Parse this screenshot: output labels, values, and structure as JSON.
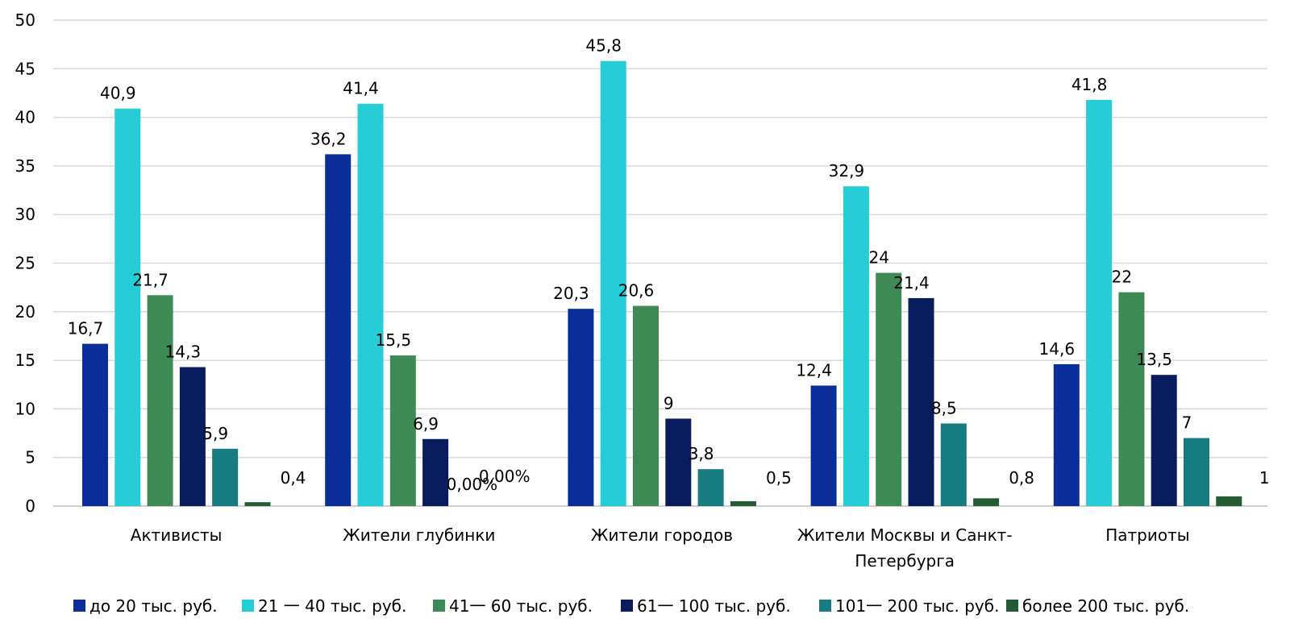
{
  "chart_data": {
    "type": "bar",
    "title": "",
    "xlabel": "",
    "ylabel": "",
    "ylim": [
      0,
      50
    ],
    "yticks": [
      "0",
      "5",
      "10",
      "15",
      "20",
      "25",
      "30",
      "35",
      "40",
      "45",
      "50"
    ],
    "grid": true,
    "legend_position": "bottom",
    "categories": [
      [
        "Активисты"
      ],
      [
        "Жители глубинки"
      ],
      [
        "Жители городов"
      ],
      [
        "Жители Москвы и Санкт-",
        "Петербурга"
      ],
      [
        "Патриоты"
      ]
    ],
    "series": [
      {
        "name": "до 20 тыс. руб.",
        "color": "#0a2d9a",
        "values": [
          16.7,
          36.2,
          20.3,
          12.4,
          14.6
        ],
        "labels": [
          "16,7",
          "36,2",
          "20,3",
          "12,4",
          "14,6"
        ]
      },
      {
        "name": "21 一 40 тыс. руб.",
        "color": "#27cdd6",
        "values": [
          40.9,
          41.4,
          45.8,
          32.9,
          41.8
        ],
        "labels": [
          "40,9",
          "41,4",
          "45,8",
          "32,9",
          "41,8"
        ]
      },
      {
        "name": "41一 60 тыс. руб.",
        "color": "#3e8a55",
        "values": [
          21.7,
          15.5,
          20.6,
          24,
          22
        ],
        "labels": [
          "21,7",
          "15,5",
          "20,6",
          "24",
          "22"
        ]
      },
      {
        "name": "61一 100 тыс. руб.",
        "color": "#081c5e",
        "values": [
          14.3,
          6.9,
          9,
          21.4,
          13.5
        ],
        "labels": [
          "14,3",
          "6,9",
          "9",
          "21,4",
          "13,5"
        ]
      },
      {
        "name": "101一 200 тыс. руб.",
        "color": "#177c80",
        "values": [
          5.9,
          0,
          3.8,
          8.5,
          7
        ],
        "labels": [
          "5,9",
          "0,00%",
          "3,8",
          "8,5",
          "7"
        ]
      },
      {
        "name": "более 200 тыс. руб.",
        "color": "#245a34",
        "values": [
          0.4,
          0,
          0.5,
          0.8,
          1
        ],
        "labels": [
          "0,4",
          "0,00%",
          "0,5",
          "0,8",
          "1"
        ]
      }
    ]
  }
}
